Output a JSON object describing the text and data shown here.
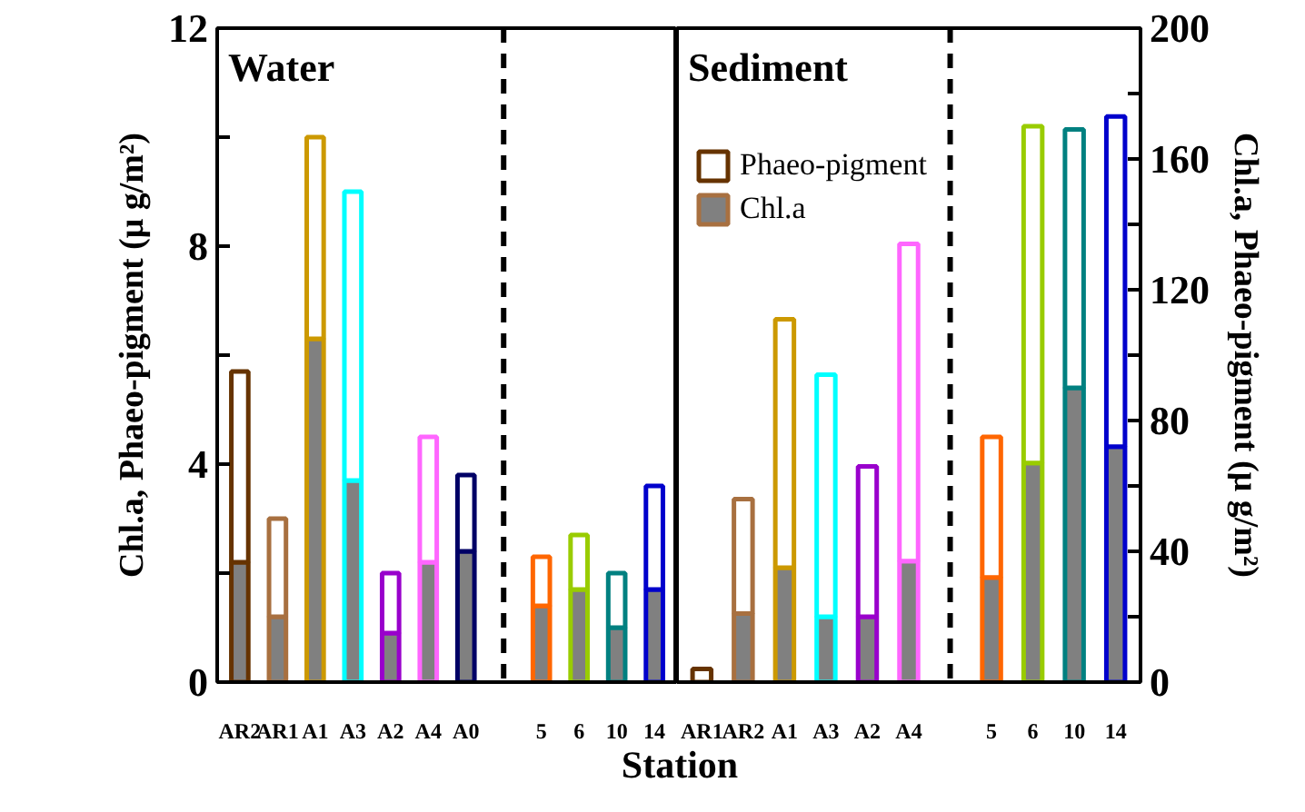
{
  "chart_data": [
    {
      "type": "bar",
      "title": "Water",
      "stacked": true,
      "legend": false,
      "xlabel": "Station",
      "ylabel": "Chl.a, Phaeo-pigment (μ g/m²)",
      "ylim": [
        0,
        12
      ],
      "yticks": [
        0,
        {
          "value": 2,
          "label": null
        },
        4,
        {
          "value": 6,
          "label": null
        },
        8,
        {
          "value": 10,
          "label": null
        },
        12
      ],
      "categories": [
        "AR2",
        "AR1",
        "A1",
        "A3",
        "A2",
        "A4",
        "A0",
        null,
        "5",
        "6",
        "10",
        "14"
      ],
      "series": [
        {
          "color": "#808080",
          "values": [
            2.2,
            1.2,
            6.3,
            3.7,
            0.9,
            2.2,
            2.4,
            null,
            1.4,
            1.7,
            1.0,
            1.7
          ]
        },
        {
          "color": "#ffffff",
          "colors": [
            "#663300",
            "#a87040",
            "#cc9900",
            "#00ffff",
            "#9900cc",
            "#ff66ff",
            "#000066",
            null,
            "#ff6600",
            "#99cc00",
            "#008080",
            "#0000cc"
          ],
          "values": [
            3.5,
            1.8,
            3.7,
            5.3,
            1.1,
            2.3,
            1.4,
            null,
            0.9,
            1.0,
            1.0,
            1.9
          ]
        }
      ]
    },
    {
      "type": "bar",
      "title": "Sediment",
      "stacked": true,
      "legend": "top left",
      "y2label": "Chl.a, Phaeo-pigment (μ g/m²)",
      "y2lim": [
        0,
        200
      ],
      "y2ticks": [
        0,
        {
          "value": 20,
          "label": null
        },
        40,
        {
          "value": 60,
          "label": null
        },
        80,
        {
          "value": 100,
          "label": null
        },
        120,
        {
          "value": 140,
          "label": null
        },
        160,
        {
          "value": 180,
          "label": null
        },
        200
      ],
      "categories": [
        "AR1",
        "AR2",
        "A1",
        "A3",
        "A2",
        "A4",
        null,
        "5",
        "6",
        "10",
        "14"
      ],
      "series": [
        {
          "name": "Chl.a",
          "color": "#808080",
          "axis": "y2",
          "values": [
            null,
            21,
            35,
            20,
            20,
            37,
            null,
            32,
            67,
            90,
            72
          ]
        },
        {
          "name": "Phaeo-pigment",
          "color": "#ffffff",
          "axis": "y2",
          "colors": [
            "#663300",
            "#a87040",
            "#cc9900",
            "#00ffff",
            "#9900cc",
            "#ff66ff",
            null,
            "#ff6600",
            "#99cc00",
            "#008080",
            "#0000cc"
          ],
          "values": [
            4,
            35,
            76,
            74,
            46,
            97,
            null,
            43,
            103,
            79,
            101
          ]
        }
      ]
    }
  ]
}
